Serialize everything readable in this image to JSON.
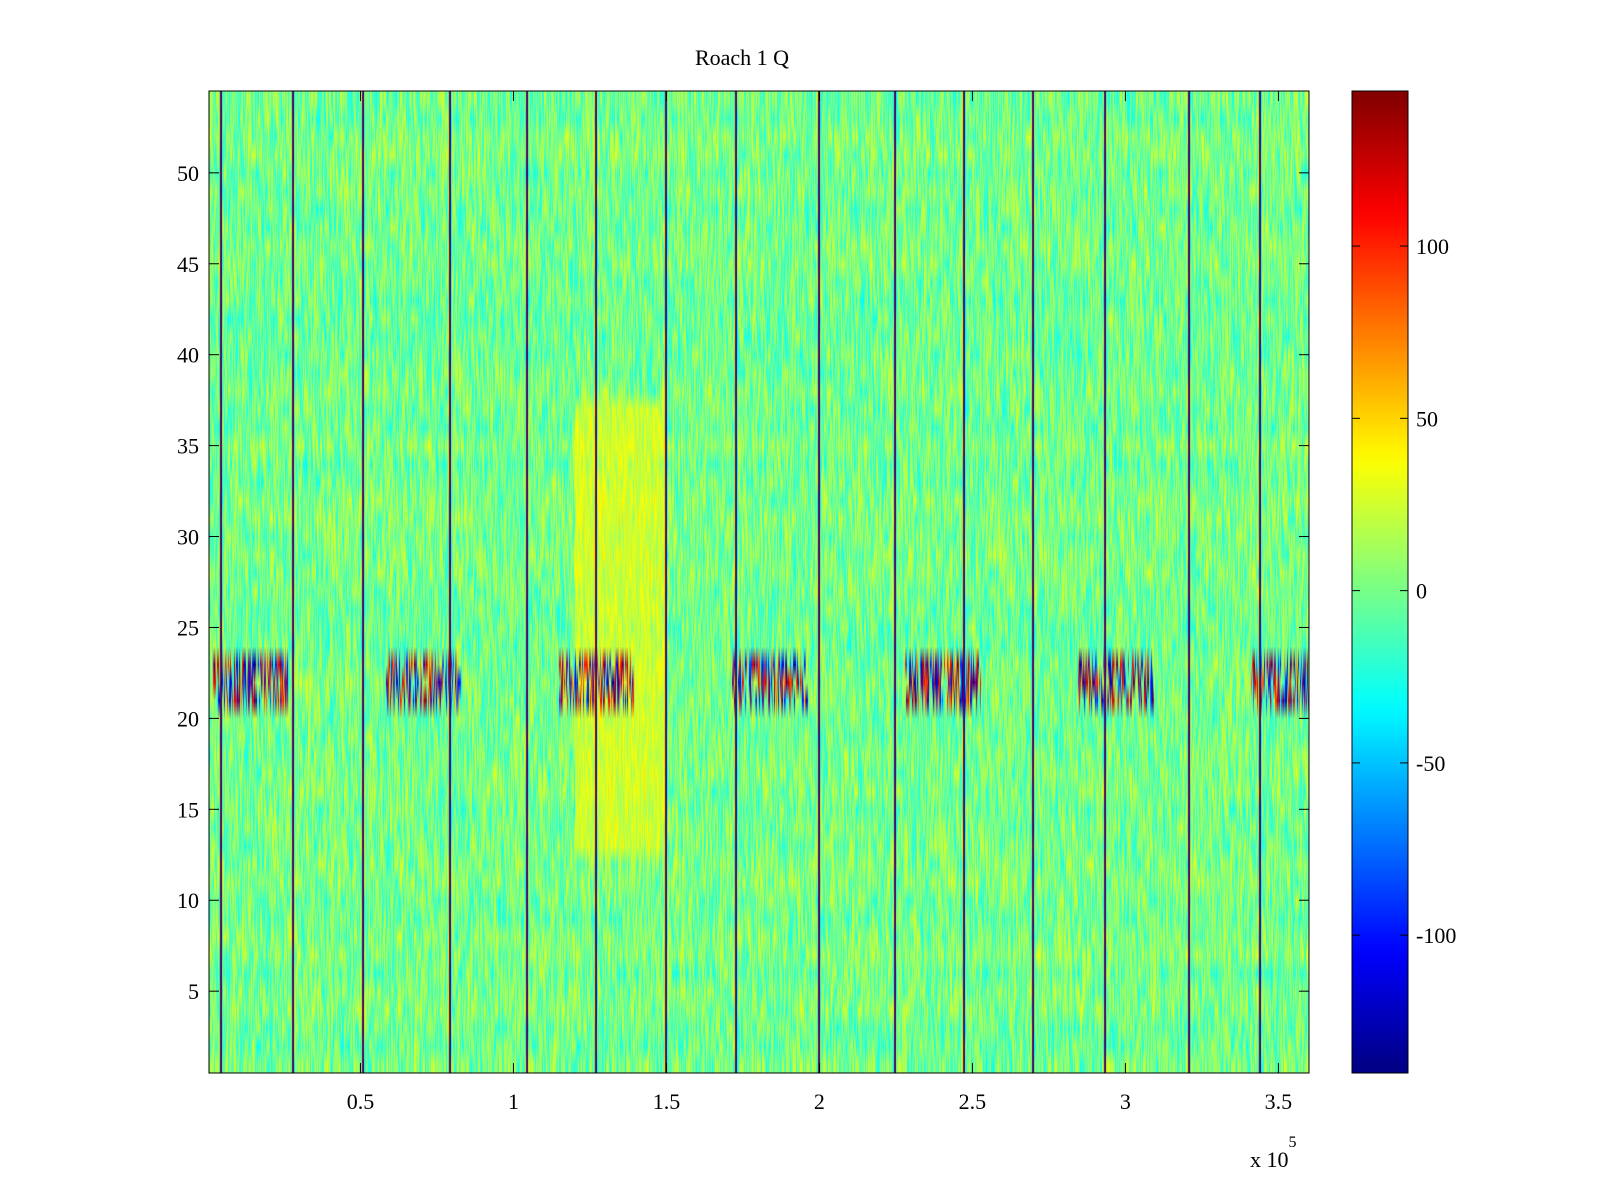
{
  "chart_data": {
    "type": "heatmap",
    "title": "Roach 1 Q",
    "xlabel": "",
    "ylabel": "",
    "x_range": [
      500,
      360000
    ],
    "y_range": [
      0.5,
      54.5
    ],
    "x_ticks": [
      50000,
      100000,
      150000,
      200000,
      250000,
      300000,
      350000
    ],
    "x_tick_labels": [
      "0.5",
      "1",
      "1.5",
      "2",
      "2.5",
      "3",
      "3.5"
    ],
    "x_exponent_label": "x 10",
    "x_exponent": "5",
    "y_ticks": [
      5,
      10,
      15,
      20,
      25,
      30,
      35,
      40,
      45,
      50
    ],
    "y_tick_labels": [
      "5",
      "10",
      "15",
      "20",
      "25",
      "30",
      "35",
      "40",
      "45",
      "50"
    ],
    "n_rows": 54,
    "colormap": "jet",
    "colorbar": {
      "range": [
        -140,
        145
      ],
      "ticks": [
        -100,
        -50,
        0,
        50,
        100
      ],
      "tick_labels": [
        "-100",
        "-50",
        "0",
        "50",
        "100"
      ]
    },
    "vertical_spike_x": [
      4000,
      27500,
      50500,
      79000,
      104000,
      126500,
      149500,
      172500,
      199500,
      224500,
      247000,
      269500,
      293000,
      320500,
      343500
    ],
    "high_variance_band_rows": [
      21,
      23
    ],
    "warm_region": {
      "x": [
        120000,
        150000
      ],
      "rows": [
        13,
        37
      ],
      "approx_value": 25
    },
    "background_value_range": [
      -30,
      30
    ],
    "grid": false,
    "colors": {
      "axis": "#000000",
      "background": "#ffffff"
    }
  }
}
